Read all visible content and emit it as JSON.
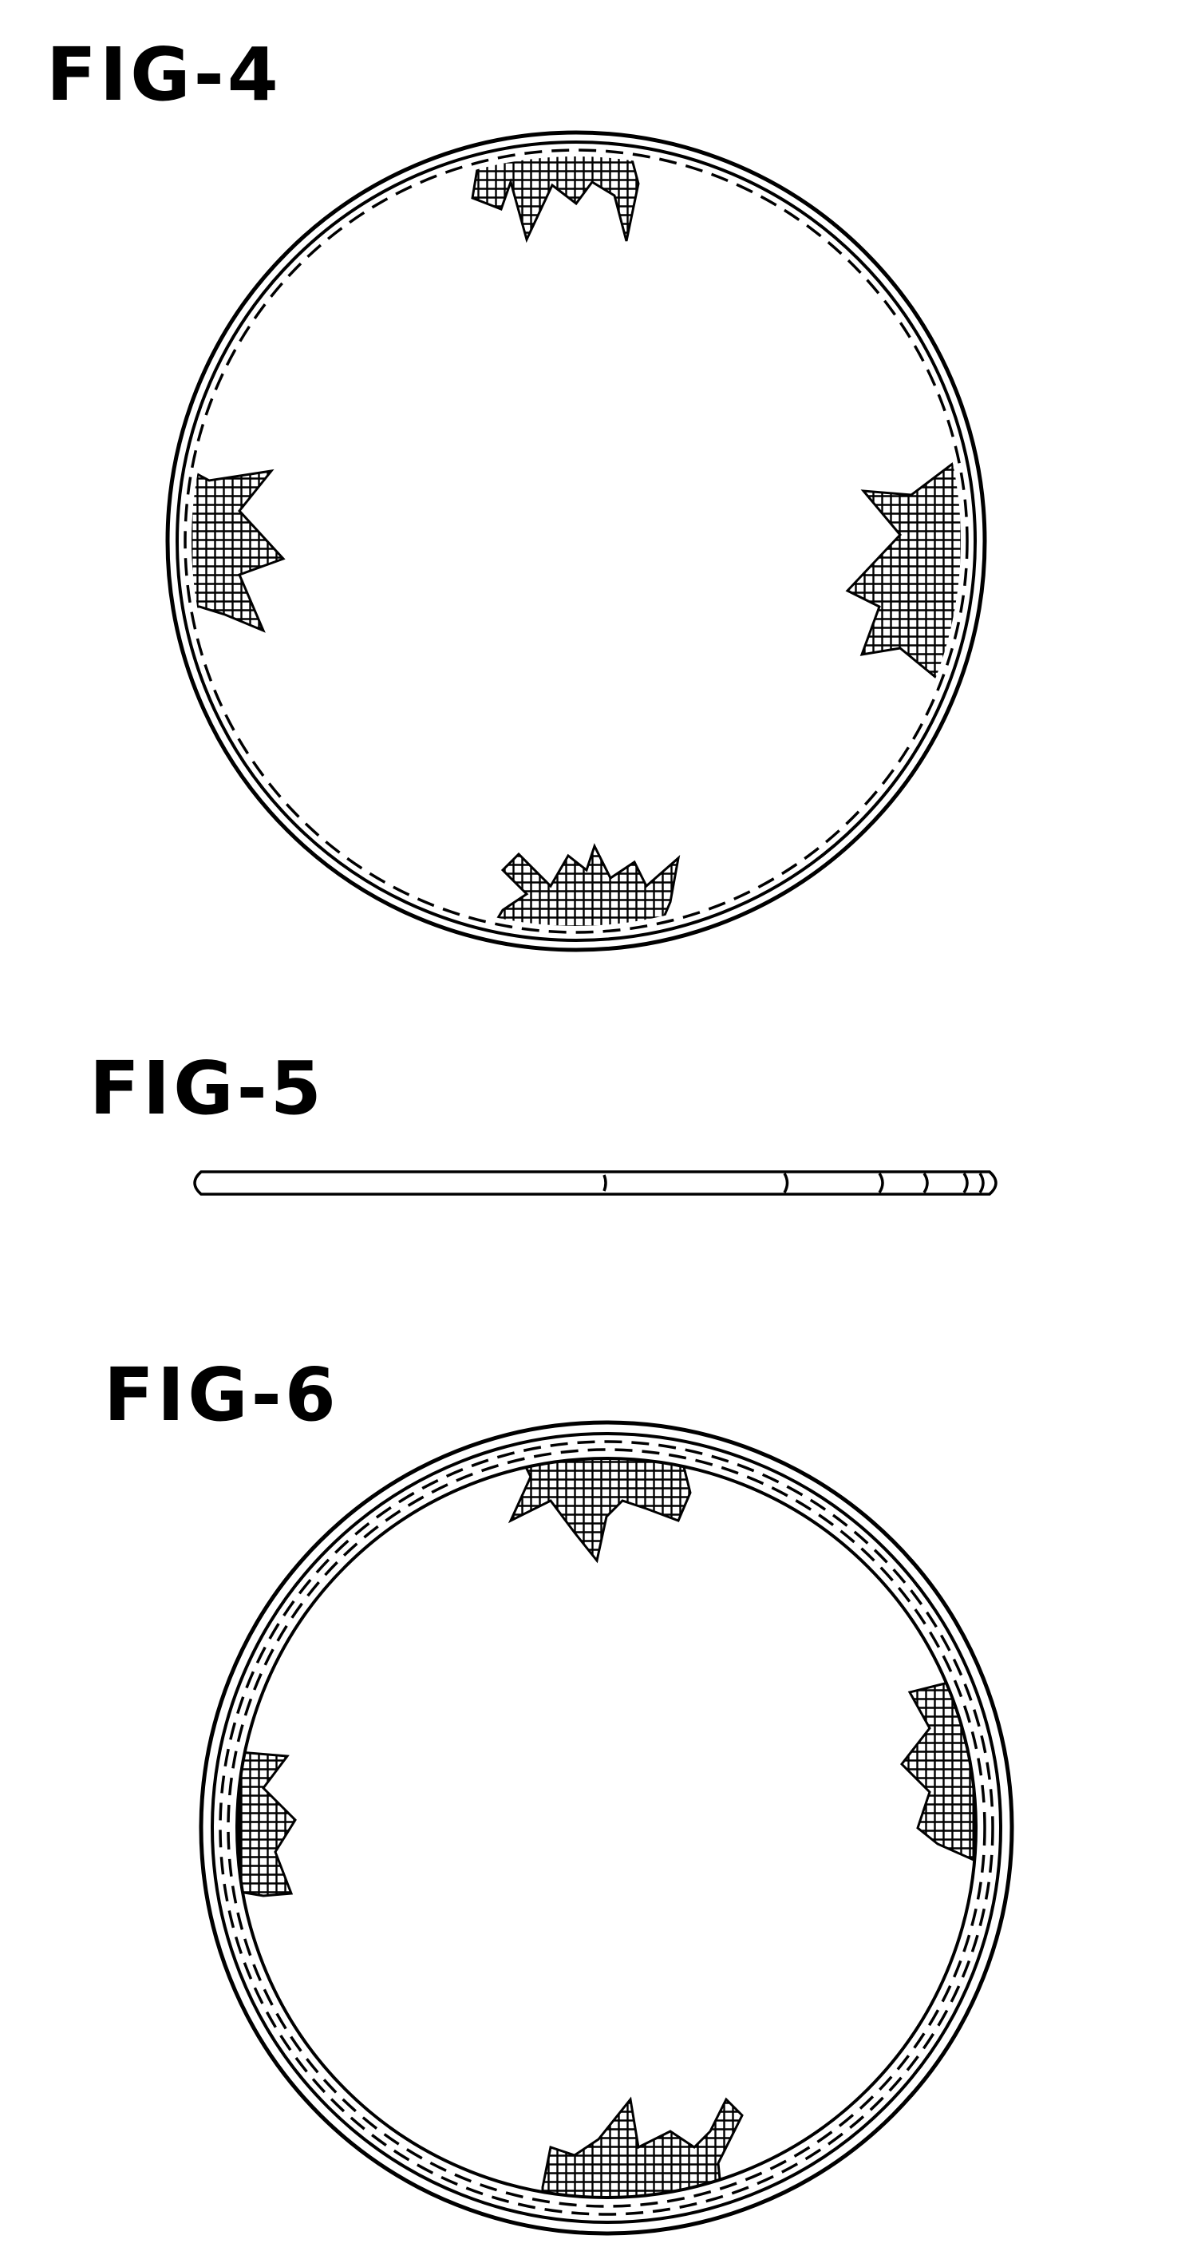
{
  "figures": [
    {
      "label": "FIG-4"
    },
    {
      "label": "FIG-5"
    },
    {
      "label": "FIG-6"
    }
  ],
  "colors": {
    "ink": "#000000",
    "paper": "#ffffff"
  }
}
